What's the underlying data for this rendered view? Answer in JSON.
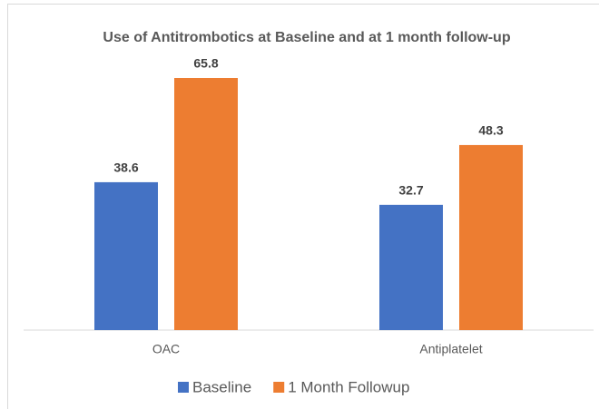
{
  "chart_data": {
    "type": "bar",
    "title": "Use of Antitrombotics at Baseline and at 1 month follow-up",
    "categories": [
      "OAC",
      "Antiplatelet"
    ],
    "series": [
      {
        "name": "Baseline",
        "color": "#4472c4",
        "values": [
          38.6,
          32.7
        ]
      },
      {
        "name": "1 Month Followup",
        "color": "#ed7d31",
        "values": [
          65.8,
          48.3
        ]
      }
    ],
    "legend": "bottom"
  }
}
